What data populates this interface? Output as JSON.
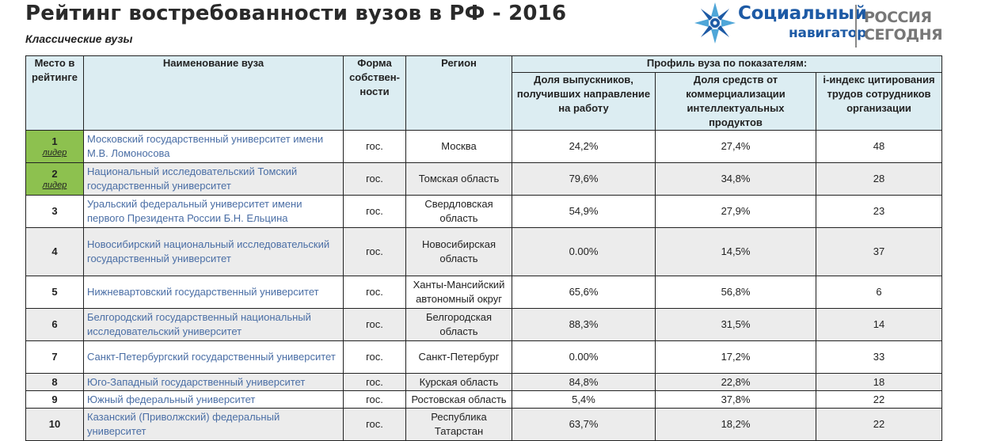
{
  "header": {
    "title": "Рейтинг востребованности вузов в РФ - 2016",
    "subtitle": "Классические вузы"
  },
  "logo": {
    "name_line1": "Социальный",
    "name_line2": "навигатор",
    "partner_line1": "РОССИЯ",
    "partner_line2": "СЕГОДНЯ",
    "star_icon": "snowflake-star-icon",
    "colors": {
      "brand_blue": "#1d5aa5",
      "partner_gray": "#777777"
    }
  },
  "table": {
    "headers": {
      "place": "Место в рейтинге",
      "name": "Наименование вуза",
      "ownership": "Форма собствен-ности",
      "region": "Регион",
      "profile": "Профиль вуза по показателям:",
      "graduates": "Доля выпускников, получивших направление на работу",
      "commercial": "Доля средств от коммерциализации интеллектуальных продуктов",
      "citation": "i-индекс цитирования трудов сотрудников организации"
    },
    "leader_label": "лидер",
    "colors": {
      "header_bg": "#dcedf2",
      "leader_bg": "#8dc14f",
      "shade_bg": "#ececec",
      "link_text": "#4a6ea5"
    },
    "rows": [
      {
        "place": "1",
        "leader": true,
        "name": "Московский государственный университет имени М.В. Ломоносова",
        "ownership": "гос.",
        "region": "Москва",
        "graduates": "24,2%",
        "commercial": "27,4%",
        "citation": "48"
      },
      {
        "place": "2",
        "leader": true,
        "name": "Национальный исследовательский Томский государственный университет",
        "ownership": "гос.",
        "region": "Томская область",
        "graduates": "79,6%",
        "commercial": "34,8%",
        "citation": "28"
      },
      {
        "place": "3",
        "leader": false,
        "name": "Уральский федеральный университет имени первого Президента России Б.Н. Ельцина",
        "ownership": "гос.",
        "region": "Свердловская область",
        "graduates": "54,9%",
        "commercial": "27,9%",
        "citation": "23"
      },
      {
        "place": "4",
        "leader": false,
        "name": "Новосибирский национальный исследовательский государственный университет",
        "ownership": "гос.",
        "region": "Новосибирская область",
        "graduates": "0.00%",
        "commercial": "14,5%",
        "citation": "37"
      },
      {
        "place": "5",
        "leader": false,
        "name": "Нижневартовский государственный университет",
        "ownership": "гос.",
        "region": "Ханты-Мансийский автономный округ",
        "graduates": "65,6%",
        "commercial": "56,8%",
        "citation": "6"
      },
      {
        "place": "6",
        "leader": false,
        "name": "Белгородский государственный национальный исследовательский университет",
        "ownership": "гос.",
        "region": "Белгородская область",
        "graduates": "88,3%",
        "commercial": "31,5%",
        "citation": "14"
      },
      {
        "place": "7",
        "leader": false,
        "name": "Санкт-Петербургский государственный университет",
        "ownership": "гос.",
        "region": "Санкт-Петербург",
        "graduates": "0.00%",
        "commercial": "17,2%",
        "citation": "33"
      },
      {
        "place": "8",
        "leader": false,
        "name": "Юго-Западный государственный университет",
        "ownership": "гос.",
        "region": "Курская область",
        "graduates": "84,8%",
        "commercial": "22,8%",
        "citation": "18"
      },
      {
        "place": "9",
        "leader": false,
        "name": "Южный федеральный университет",
        "ownership": "гос.",
        "region": "Ростовская область",
        "graduates": "5,4%",
        "commercial": "37,8%",
        "citation": "22"
      },
      {
        "place": "10",
        "leader": false,
        "name": "Казанский (Приволжский) федеральный университет",
        "ownership": "гос.",
        "region": "Республика Татарстан",
        "graduates": "63,7%",
        "commercial": "18,2%",
        "citation": "22"
      }
    ]
  }
}
